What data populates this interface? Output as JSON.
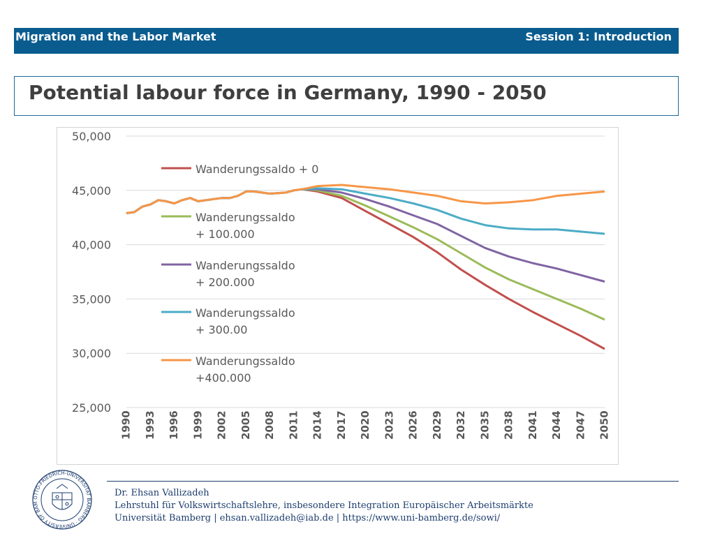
{
  "header": {
    "course": "Migration and the Labor Market",
    "session": "Session 1: Introduction"
  },
  "slide_title": "Potential labour force in Germany, 1990 - 2050",
  "footer": {
    "author": "Dr. Ehsan Vallizadeh",
    "chair": "Lehrstuhl für Volkswirtschaftslehre, insbesondere Integration Europäischer Arbeitsmärkte",
    "contact": "Universität Bamberg | ehsan.vallizadeh@iab.de | https://www.uni-bamberg.de/sowi/"
  },
  "logo": {
    "text": "OTTO-FRIEDRICH-UNIVERSITÄT BAMBERG · UNIVERSITY OF BAMBERG"
  },
  "colors": {
    "header_bg": "#0a5c8f",
    "title_text": "#3f3f3f",
    "footer_text": "#1c3d6e"
  },
  "chart_data": {
    "type": "line",
    "title": "",
    "xlabel": "",
    "ylabel": "",
    "ylim": [
      25000,
      50000
    ],
    "y_ticks": [
      "25,000",
      "30,000",
      "35,000",
      "40,000",
      "45,000",
      "50,000"
    ],
    "x_ticks": [
      "1990",
      "1993",
      "1996",
      "1999",
      "2002",
      "2005",
      "2008",
      "2011",
      "2014",
      "2017",
      "2020",
      "2023",
      "2026",
      "2029",
      "2032",
      "2035",
      "2038",
      "2041",
      "2044",
      "2047",
      "2050"
    ],
    "grid": true,
    "legend_position": "left, inside plot",
    "historical": {
      "x": [
        1990,
        1991,
        1992,
        1993,
        1994,
        1995,
        1996,
        1997,
        1998,
        1999,
        2000,
        2001,
        2002,
        2003,
        2004,
        2005,
        2006,
        2007,
        2008,
        2009,
        2010,
        2011,
        2012
      ],
      "y": [
        42900,
        43000,
        43500,
        43700,
        44100,
        44000,
        43800,
        44100,
        44300,
        44000,
        44100,
        44200,
        44300,
        44300,
        44500,
        44900,
        44900,
        44800,
        44700,
        44750,
        44800,
        45000,
        45100
      ]
    },
    "series": [
      {
        "name": "Wanderungssaldo + 0",
        "color": "#c0504d",
        "x": [
          2012,
          2014,
          2017,
          2020,
          2023,
          2026,
          2029,
          2032,
          2035,
          2038,
          2041,
          2044,
          2047,
          2050
        ],
        "y": [
          45100,
          44900,
          44300,
          43100,
          41900,
          40700,
          39300,
          37700,
          36300,
          35000,
          33800,
          32700,
          31600,
          30400
        ]
      },
      {
        "name": "Wanderungssaldo + 100.000",
        "color": "#9bbb59",
        "x": [
          2012,
          2014,
          2017,
          2020,
          2023,
          2026,
          2029,
          2032,
          2035,
          2038,
          2041,
          2044,
          2047,
          2050
        ],
        "y": [
          45100,
          45000,
          44500,
          43600,
          42600,
          41600,
          40500,
          39200,
          37900,
          36800,
          35900,
          35000,
          34100,
          33100
        ]
      },
      {
        "name": "Wanderungssaldo + 200.000",
        "color": "#8064a2",
        "x": [
          2012,
          2014,
          2017,
          2020,
          2023,
          2026,
          2029,
          2032,
          2035,
          2038,
          2041,
          2044,
          2047,
          2050
        ],
        "y": [
          45100,
          45100,
          44800,
          44200,
          43500,
          42700,
          41900,
          40800,
          39700,
          38900,
          38300,
          37800,
          37200,
          36600
        ]
      },
      {
        "name": "Wanderungssaldo + 300.00",
        "color": "#4bacc6",
        "x": [
          2012,
          2014,
          2017,
          2020,
          2023,
          2026,
          2029,
          2032,
          2035,
          2038,
          2041,
          2044,
          2047,
          2050
        ],
        "y": [
          45100,
          45200,
          45100,
          44700,
          44300,
          43800,
          43200,
          42400,
          41800,
          41500,
          41400,
          41400,
          41200,
          41000
        ]
      },
      {
        "name": "Wanderungssaldo +400.000",
        "color": "#f79646",
        "x": [
          2012,
          2014,
          2017,
          2020,
          2023,
          2026,
          2029,
          2032,
          2035,
          2038,
          2041,
          2044,
          2047,
          2050
        ],
        "y": [
          45100,
          45400,
          45500,
          45300,
          45100,
          44800,
          44500,
          44000,
          43800,
          43900,
          44100,
          44500,
          44700,
          44900
        ]
      }
    ],
    "legend": [
      {
        "lines": [
          "Wanderungssaldo + 0"
        ],
        "color": "#c0504d"
      },
      {
        "lines": [
          "Wanderungssaldo",
          "+ 100.000"
        ],
        "color": "#9bbb59"
      },
      {
        "lines": [
          "Wanderungssaldo",
          "+ 200.000"
        ],
        "color": "#8064a2"
      },
      {
        "lines": [
          "Wanderungssaldo",
          "+ 300.00"
        ],
        "color": "#4bacc6"
      },
      {
        "lines": [
          "Wanderungssaldo",
          "+400.000"
        ],
        "color": "#f79646"
      }
    ]
  }
}
